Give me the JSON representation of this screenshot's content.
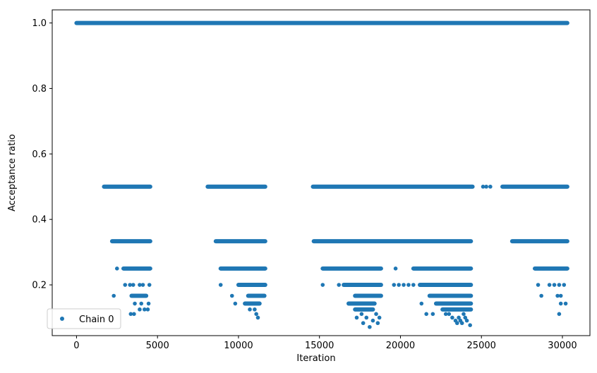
{
  "chart_data": {
    "type": "scatter",
    "title": "",
    "xlabel": "Iteration",
    "ylabel": "Acceptance ratio",
    "xlim": [
      -1500,
      31700
    ],
    "ylim": [
      0.045,
      1.04
    ],
    "xticks": [
      0,
      5000,
      10000,
      15000,
      20000,
      25000,
      30000
    ],
    "xtick_labels": [
      "0",
      "5000",
      "10000",
      "15000",
      "20000",
      "25000",
      "30000"
    ],
    "yticks": [
      0.2,
      0.4,
      0.6,
      0.8,
      1.0
    ],
    "ytick_labels": [
      "0.2",
      "0.4",
      "0.6",
      "0.8",
      "1.0"
    ],
    "grid": false,
    "legend_position": "bottom-left",
    "marker_color": "#1f77b4",
    "series": [
      {
        "name": "Chain 0",
        "segments": [
          {
            "y": 1.0,
            "x_start": 0,
            "x_end": 30300
          },
          {
            "y": 0.5,
            "x_start": 1700,
            "x_end": 4550
          },
          {
            "y": 0.5,
            "x_start": 8100,
            "x_end": 11650
          },
          {
            "y": 0.5,
            "x_start": 14600,
            "x_end": 24450
          },
          {
            "y": 0.5,
            "x_start": 26300,
            "x_end": 30300
          },
          {
            "y": 0.3333,
            "x_start": 2200,
            "x_end": 4550
          },
          {
            "y": 0.3333,
            "x_start": 8600,
            "x_end": 11650
          },
          {
            "y": 0.3333,
            "x_start": 14650,
            "x_end": 24350
          },
          {
            "y": 0.3333,
            "x_start": 26900,
            "x_end": 30300
          },
          {
            "y": 0.25,
            "x_start": 2900,
            "x_end": 4550
          },
          {
            "y": 0.25,
            "x_start": 8900,
            "x_end": 11650
          },
          {
            "y": 0.25,
            "x_start": 15200,
            "x_end": 18800
          },
          {
            "y": 0.25,
            "x_start": 20800,
            "x_end": 24350
          },
          {
            "y": 0.25,
            "x_start": 28300,
            "x_end": 30300
          },
          {
            "y": 0.2,
            "x_start": 10000,
            "x_end": 11650
          },
          {
            "y": 0.2,
            "x_start": 16500,
            "x_end": 18800
          },
          {
            "y": 0.2,
            "x_start": 21200,
            "x_end": 24350
          },
          {
            "y": 0.1667,
            "x_start": 3400,
            "x_end": 4300
          },
          {
            "y": 0.1667,
            "x_start": 10600,
            "x_end": 11600
          },
          {
            "y": 0.1667,
            "x_start": 17200,
            "x_end": 18800
          },
          {
            "y": 0.1667,
            "x_start": 21800,
            "x_end": 24350
          },
          {
            "y": 0.1429,
            "x_start": 10400,
            "x_end": 11300
          },
          {
            "y": 0.1429,
            "x_start": 16800,
            "x_end": 18400
          },
          {
            "y": 0.1429,
            "x_start": 22200,
            "x_end": 24350
          },
          {
            "y": 0.125,
            "x_start": 17200,
            "x_end": 18300
          },
          {
            "y": 0.125,
            "x_start": 22600,
            "x_end": 24350
          }
        ],
        "points": [
          [
            2300,
            0.1667
          ],
          [
            2500,
            0.25
          ],
          [
            2700,
            0.3333
          ],
          [
            3000,
            0.2
          ],
          [
            3300,
            0.2
          ],
          [
            3500,
            0.2
          ],
          [
            3900,
            0.2
          ],
          [
            4100,
            0.2
          ],
          [
            4500,
            0.2
          ],
          [
            3600,
            0.1429
          ],
          [
            4000,
            0.1429
          ],
          [
            4450,
            0.1429
          ],
          [
            3900,
            0.125
          ],
          [
            4200,
            0.125
          ],
          [
            4400,
            0.125
          ],
          [
            3350,
            0.1111
          ],
          [
            3550,
            0.1111
          ],
          [
            8900,
            0.2
          ],
          [
            9600,
            0.1667
          ],
          [
            9800,
            0.1429
          ],
          [
            10700,
            0.125
          ],
          [
            11000,
            0.125
          ],
          [
            11100,
            0.1111
          ],
          [
            11200,
            0.1
          ],
          [
            15200,
            0.2
          ],
          [
            16200,
            0.2
          ],
          [
            17600,
            0.1111
          ],
          [
            17900,
            0.1
          ],
          [
            18100,
            0.0714
          ],
          [
            18300,
            0.0909
          ],
          [
            17300,
            0.1
          ],
          [
            18500,
            0.1111
          ],
          [
            18700,
            0.1
          ],
          [
            18600,
            0.0833
          ],
          [
            17700,
            0.0833
          ],
          [
            19700,
            0.25
          ],
          [
            19600,
            0.2
          ],
          [
            19900,
            0.2
          ],
          [
            20200,
            0.2
          ],
          [
            20500,
            0.2
          ],
          [
            20800,
            0.2
          ],
          [
            21300,
            0.1429
          ],
          [
            21600,
            0.1111
          ],
          [
            22000,
            0.1111
          ],
          [
            23000,
            0.1111
          ],
          [
            23200,
            0.1
          ],
          [
            23400,
            0.0909
          ],
          [
            23500,
            0.0833
          ],
          [
            23600,
            0.1
          ],
          [
            23700,
            0.0909
          ],
          [
            23800,
            0.0833
          ],
          [
            24000,
            0.1
          ],
          [
            24100,
            0.0909
          ],
          [
            24300,
            0.0769
          ],
          [
            23900,
            0.1111
          ],
          [
            22800,
            0.1111
          ],
          [
            25100,
            0.5
          ],
          [
            25300,
            0.5
          ],
          [
            25550,
            0.5
          ],
          [
            28500,
            0.2
          ],
          [
            28700,
            0.1667
          ],
          [
            29200,
            0.2
          ],
          [
            29500,
            0.2
          ],
          [
            29800,
            0.2
          ],
          [
            30100,
            0.2
          ],
          [
            29700,
            0.1667
          ],
          [
            29900,
            0.1667
          ],
          [
            29900,
            0.1429
          ],
          [
            30200,
            0.1429
          ],
          [
            29800,
            0.1111
          ],
          [
            28800,
            0.25
          ],
          [
            28700,
            0.3333
          ]
        ]
      }
    ]
  }
}
